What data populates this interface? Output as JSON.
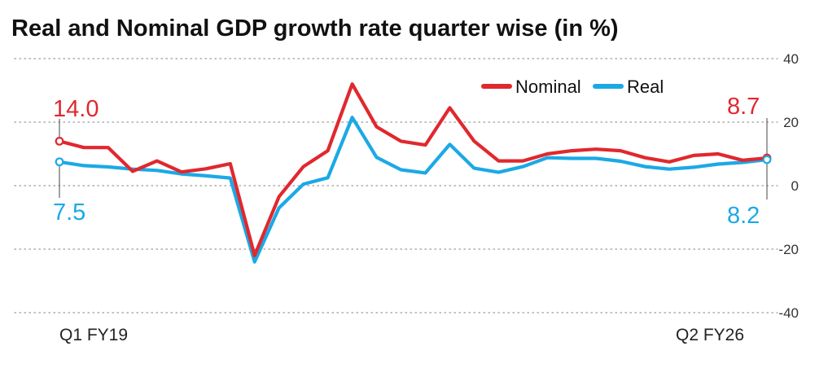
{
  "chart_data": {
    "type": "line",
    "title": "Real and Nominal GDP growth rate quarter wise (in %)",
    "xlabel": "",
    "ylabel": "",
    "ylim": [
      -40,
      40
    ],
    "yticks": [
      40,
      20,
      0,
      -20,
      -40
    ],
    "x_labels": {
      "first": "Q1 FY19",
      "last": "Q2 FY26"
    },
    "series": [
      {
        "name": "Nominal",
        "color": "#e0282e",
        "values": [
          14.0,
          12.0,
          12.0,
          4.5,
          7.8,
          4.3,
          5.3,
          6.9,
          -22.0,
          -3.5,
          6.0,
          11.0,
          32.0,
          18.5,
          14.0,
          12.8,
          24.5,
          14.0,
          7.8,
          7.8,
          10.0,
          11.0,
          11.5,
          11.0,
          8.8,
          7.5,
          9.5,
          10.0,
          8.0,
          8.7
        ]
      },
      {
        "name": "Real",
        "color": "#1ba9e6",
        "values": [
          7.5,
          6.3,
          5.9,
          5.2,
          4.8,
          3.7,
          3.1,
          2.4,
          -24.0,
          -7.0,
          0.5,
          2.5,
          21.5,
          8.9,
          5.0,
          4.0,
          13.0,
          5.5,
          4.2,
          6.0,
          8.8,
          8.6,
          8.6,
          7.7,
          6.0,
          5.2,
          5.8,
          6.8,
          7.3,
          8.2
        ]
      }
    ],
    "annotations": {
      "nominal_first": "14.0",
      "real_first": "7.5",
      "nominal_last": "8.7",
      "real_last": "8.2"
    }
  }
}
